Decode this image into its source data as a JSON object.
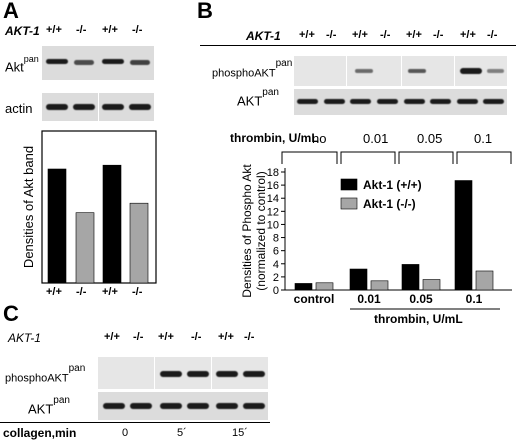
{
  "panel_a": {
    "letter": "A",
    "genotype_label": "AKT-1",
    "genotypes": [
      "+/+",
      "-/-",
      "+/+",
      "-/-"
    ],
    "blot_labels": {
      "akt_main": "Akt",
      "akt_sup": "pan",
      "actin": "actin"
    },
    "chart_data": {
      "type": "bar",
      "categories": [
        "+/+",
        "-/-",
        "+/+",
        "-/-"
      ],
      "values": [
        60,
        37,
        62,
        42
      ],
      "bar_colors": [
        "#000000",
        "#a6a6a6",
        "#000000",
        "#a6a6a6"
      ],
      "ylabel": "Densities of Akt band",
      "ylim": [
        0,
        80
      ],
      "grid": false
    }
  },
  "panel_b": {
    "letter": "B",
    "genotype_label": "AKT-1",
    "genotypes": [
      "+/+",
      "-/-",
      "+/+",
      "-/-",
      "+/+",
      "-/-",
      "+/+",
      "-/-"
    ],
    "blot_labels": {
      "phospho_main": "phosphoAKT",
      "phospho_sup": "pan",
      "akt_main": "AKT",
      "akt_sup": "pan"
    },
    "thrombin_label": "thrombin, U/mL",
    "thrombin_values": [
      "no",
      "0.01",
      "0.05",
      "0.1"
    ],
    "chart_data": {
      "type": "bar",
      "categories": [
        "control",
        "0.01",
        "0.05",
        "0.1"
      ],
      "series": [
        {
          "name": "Akt-1 (+/+)",
          "color": "#000000",
          "values": [
            1.0,
            3.2,
            3.9,
            16.7
          ]
        },
        {
          "name": "Akt-1 (-/-)",
          "color": "#a6a6a6",
          "values": [
            1.1,
            1.4,
            1.6,
            2.9
          ]
        }
      ],
      "ylabel": "Densities of Phospho Akt (normalized to control)",
      "ylabel_line1": "Densities of Phospho Akt",
      "ylabel_line2": "(normalized to control)",
      "xlabel": "thrombin, U/mL",
      "yticks": [
        0,
        2,
        4,
        6,
        8,
        10,
        12,
        14,
        16,
        18
      ],
      "ylim": [
        0,
        18
      ],
      "legend_position": "top-right",
      "grid": false
    }
  },
  "panel_c": {
    "letter": "C",
    "genotype_label": "AKT-1",
    "genotypes": [
      "+/+",
      "-/-",
      "+/+",
      "-/-",
      "+/+",
      "-/-"
    ],
    "blot_labels": {
      "phospho_main": "phosphoAKT",
      "phospho_sup": "pan",
      "akt_main": "AKT",
      "akt_sup": "pan"
    },
    "collagen_label": "collagen,min",
    "collagen_values": [
      "0",
      "5´",
      "15´"
    ]
  }
}
